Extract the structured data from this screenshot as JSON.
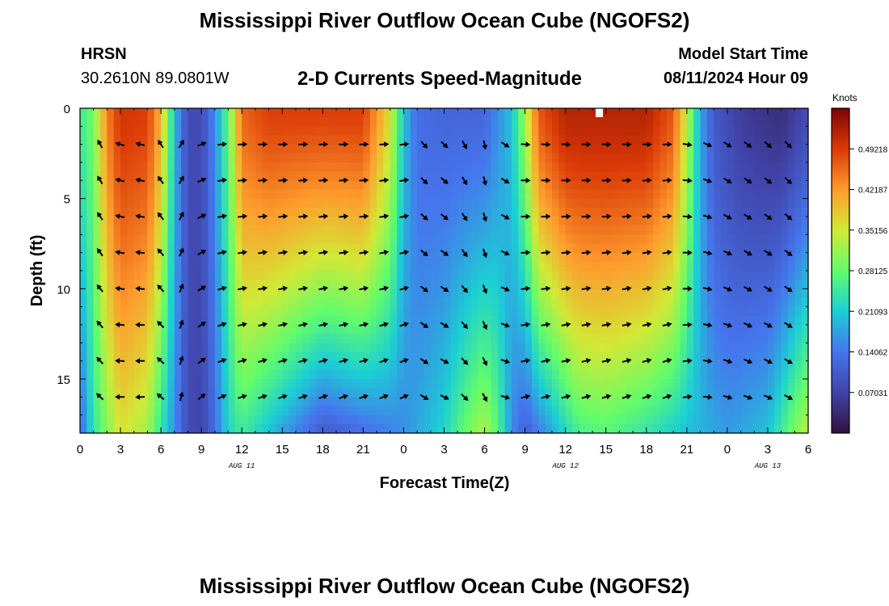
{
  "header": {
    "title": "Mississippi River Outflow Ocean Cube (NGOFS2)",
    "station_name": "HRSN",
    "station_coords": "30.2610N  89.0801W",
    "subtitle": "2-D Currents Speed-Magnitude",
    "model_start_label": "Model Start Time",
    "model_start_value": "08/11/2024 Hour 09"
  },
  "footer": {
    "title": "Mississippi River Outflow Ocean Cube (NGOFS2)"
  },
  "chart_data": {
    "type": "heatmap",
    "title": "2-D Currents Speed-Magnitude",
    "xlabel": "Forecast Time(Z)",
    "ylabel": "Depth (ft)",
    "xlim": [
      0,
      54
    ],
    "ylim": [
      18,
      0
    ],
    "x_ticks": [
      {
        "x": 0,
        "label": "0"
      },
      {
        "x": 3,
        "label": "3"
      },
      {
        "x": 6,
        "label": "6"
      },
      {
        "x": 9,
        "label": "9"
      },
      {
        "x": 12,
        "label": "12"
      },
      {
        "x": 15,
        "label": "15"
      },
      {
        "x": 18,
        "label": "18"
      },
      {
        "x": 21,
        "label": "21"
      },
      {
        "x": 24,
        "label": "0"
      },
      {
        "x": 27,
        "label": "3"
      },
      {
        "x": 30,
        "label": "6"
      },
      {
        "x": 33,
        "label": "9"
      },
      {
        "x": 36,
        "label": "12"
      },
      {
        "x": 39,
        "label": "15"
      },
      {
        "x": 42,
        "label": "18"
      },
      {
        "x": 45,
        "label": "21"
      },
      {
        "x": 48,
        "label": "0"
      },
      {
        "x": 51,
        "label": "3"
      },
      {
        "x": 54,
        "label": "6"
      }
    ],
    "y_ticks": [
      {
        "y": 0,
        "label": "0"
      },
      {
        "y": 5,
        "label": "5"
      },
      {
        "y": 10,
        "label": "10"
      },
      {
        "y": 15,
        "label": "15"
      }
    ],
    "date_labels": [
      {
        "x": 12,
        "label": "AUG 11"
      },
      {
        "x": 36,
        "label": "AUG 12"
      },
      {
        "x": 51,
        "label": "AUG 13"
      }
    ],
    "colorbar": {
      "title": "Knots",
      "range": [
        0.0,
        0.5625
      ],
      "ticks": [
        "0.07031",
        "0.14062",
        "0.21093",
        "0.28125",
        "0.35156",
        "0.42187",
        "0.49218"
      ]
    },
    "speed_profile_surface": [
      [
        0,
        0.25
      ],
      [
        1,
        0.29
      ],
      [
        2,
        0.44
      ],
      [
        3,
        0.5
      ],
      [
        5,
        0.49
      ],
      [
        6,
        0.4
      ],
      [
        7,
        0.2
      ],
      [
        8,
        0.08
      ],
      [
        9,
        0.08
      ],
      [
        10,
        0.16
      ],
      [
        11,
        0.28
      ],
      [
        12,
        0.46
      ],
      [
        14,
        0.49
      ],
      [
        21,
        0.49
      ],
      [
        23,
        0.36
      ],
      [
        24,
        0.2
      ],
      [
        25,
        0.13
      ],
      [
        27,
        0.12
      ],
      [
        30,
        0.12
      ],
      [
        32,
        0.2
      ],
      [
        33,
        0.32
      ],
      [
        34,
        0.47
      ],
      [
        36,
        0.52
      ],
      [
        42,
        0.52
      ],
      [
        44,
        0.47
      ],
      [
        45,
        0.34
      ],
      [
        46,
        0.18
      ],
      [
        47,
        0.1
      ],
      [
        49,
        0.06
      ],
      [
        52,
        0.04
      ],
      [
        54,
        0.08
      ]
    ],
    "speed_profile_bottom": [
      [
        0,
        0.12
      ],
      [
        1,
        0.24
      ],
      [
        2,
        0.3
      ],
      [
        3,
        0.36
      ],
      [
        5,
        0.32
      ],
      [
        6,
        0.24
      ],
      [
        7,
        0.16
      ],
      [
        8,
        0.08
      ],
      [
        9,
        0.07
      ],
      [
        10,
        0.13
      ],
      [
        11,
        0.22
      ],
      [
        12,
        0.25
      ],
      [
        14,
        0.2
      ],
      [
        18,
        0.1
      ],
      [
        21,
        0.13
      ],
      [
        24,
        0.16
      ],
      [
        27,
        0.22
      ],
      [
        29,
        0.3
      ],
      [
        30,
        0.33
      ],
      [
        31,
        0.27
      ],
      [
        32,
        0.16
      ],
      [
        33,
        0.11
      ],
      [
        35,
        0.18
      ],
      [
        37,
        0.26
      ],
      [
        39,
        0.27
      ],
      [
        42,
        0.24
      ],
      [
        45,
        0.2
      ],
      [
        48,
        0.17
      ],
      [
        51,
        0.2
      ],
      [
        53,
        0.3
      ],
      [
        54,
        0.34
      ]
    ],
    "vector_direction_deg": [
      [
        0,
        0
      ],
      [
        2,
        170
      ],
      [
        5,
        175
      ],
      [
        8,
        45
      ],
      [
        9,
        30
      ],
      [
        11,
        10
      ],
      [
        21,
        10
      ],
      [
        24,
        15
      ],
      [
        25,
        -40
      ],
      [
        27,
        -35
      ],
      [
        30,
        -70
      ],
      [
        32,
        -10
      ],
      [
        33,
        5
      ],
      [
        44,
        10
      ],
      [
        46,
        -10
      ],
      [
        48,
        -25
      ],
      [
        54,
        -40
      ]
    ]
  }
}
